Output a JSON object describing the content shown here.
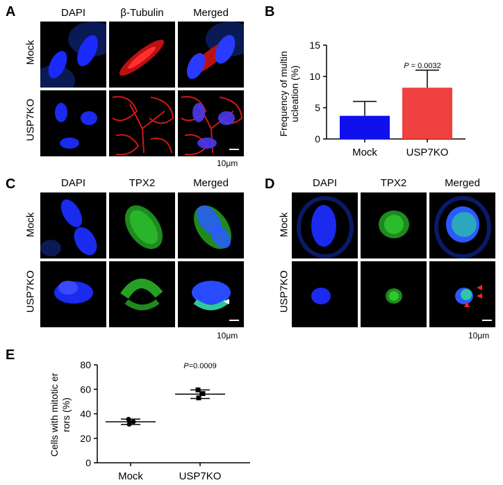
{
  "panel_a": {
    "letter": "A",
    "columns": [
      "DAPI",
      "β-Tubulin",
      "Merged"
    ],
    "rows": [
      "Mock",
      "USP7KO"
    ],
    "scale": "10μm"
  },
  "panel_b": {
    "letter": "B",
    "pvalue_prefix": "P",
    "pvalue_rest": " = 0.0032",
    "colors": {
      "mock": "#1010ee",
      "ko": "#f04040"
    }
  },
  "panel_c": {
    "letter": "C",
    "columns": [
      "DAPI",
      "TPX2",
      "Merged"
    ],
    "rows": [
      "Mock",
      "USP7KO"
    ],
    "scale": "10μm"
  },
  "panel_d": {
    "letter": "D",
    "columns": [
      "DAPI",
      "TPX2",
      "Merged"
    ],
    "rows": [
      "Mock",
      "USP7KO"
    ],
    "scale": "10μm"
  },
  "panel_e": {
    "letter": "E",
    "pvalue_prefix": "P",
    "pvalue_rest": "=0.0009"
  },
  "chart_data": [
    {
      "type": "bar",
      "panel": "B",
      "categories": [
        "Mock",
        "USP7KO"
      ],
      "values": [
        3.7,
        8.2
      ],
      "errors": [
        2.3,
        2.8
      ],
      "ylabel_line1": "Frequency of multin",
      "ylabel_line2": "ucleation (%)",
      "ylim": [
        0,
        15
      ],
      "yticks": [
        0,
        5,
        10,
        15
      ],
      "annotation": "P = 0.0032"
    },
    {
      "type": "scatter",
      "panel": "E",
      "categories": [
        "Mock",
        "USP7KO"
      ],
      "points": [
        [
          35.5,
          33.5,
          31.5
        ],
        [
          59.5,
          56.5,
          53.0
        ]
      ],
      "means": [
        33.5,
        56.0
      ],
      "sd": [
        2.2,
        3.5
      ],
      "ylabel_line1": "Cells with mitotic er",
      "ylabel_line2": "rors (%)",
      "ylim": [
        0,
        80
      ],
      "yticks": [
        0,
        20,
        40,
        60,
        80
      ],
      "annotation": "P=0.0009"
    }
  ]
}
